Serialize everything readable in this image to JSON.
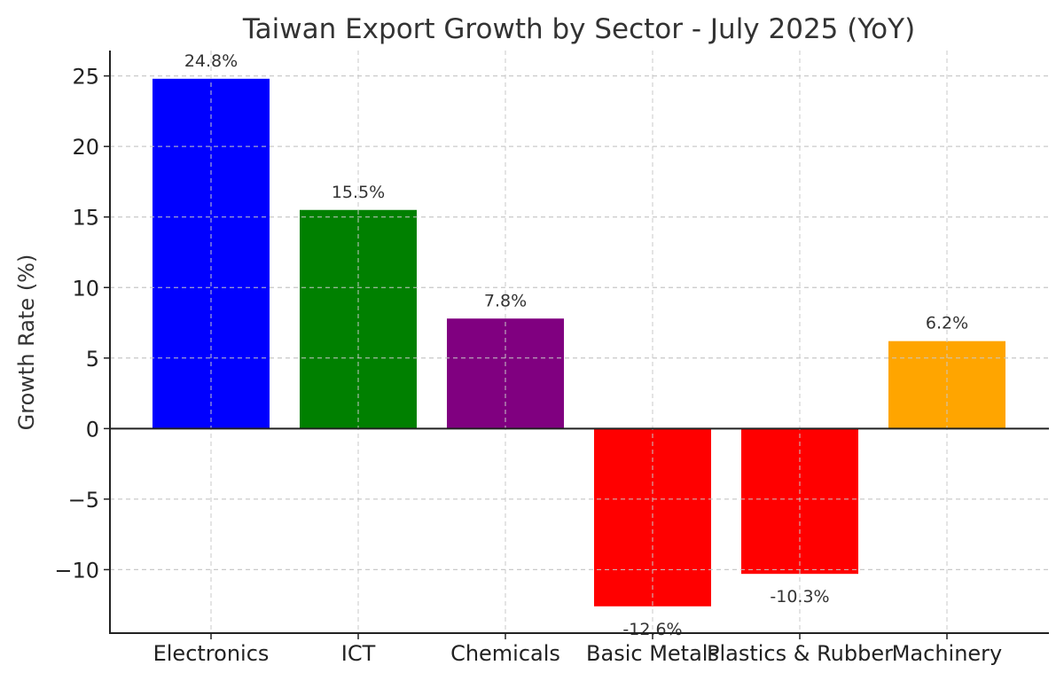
{
  "chart_data": {
    "type": "bar",
    "title": "Taiwan Export Growth by Sector - July 2025 (YoY)",
    "xlabel": "",
    "ylabel": "Growth Rate (%)",
    "categories": [
      "Electronics",
      "ICT",
      "Chemicals",
      "Basic Metals",
      "Plastics & Rubber",
      "Machinery"
    ],
    "values": [
      24.8,
      15.5,
      7.8,
      -12.6,
      -10.3,
      6.2
    ],
    "data_labels": [
      "24.8%",
      "15.5%",
      "7.8%",
      "-12.6%",
      "-10.3%",
      "6.2%"
    ],
    "colors": [
      "#0000ff",
      "#008000",
      "#800080",
      "#ff0000",
      "#ff0000",
      "#ffa500"
    ],
    "ylim": [
      -14.5,
      26.8
    ],
    "yticks": [
      -10,
      -5,
      0,
      5,
      10,
      15,
      20,
      25
    ],
    "ytick_labels": [
      "−10",
      "−5",
      "0",
      "5",
      "10",
      "15",
      "20",
      "25"
    ],
    "grid": true,
    "legend": "none"
  }
}
